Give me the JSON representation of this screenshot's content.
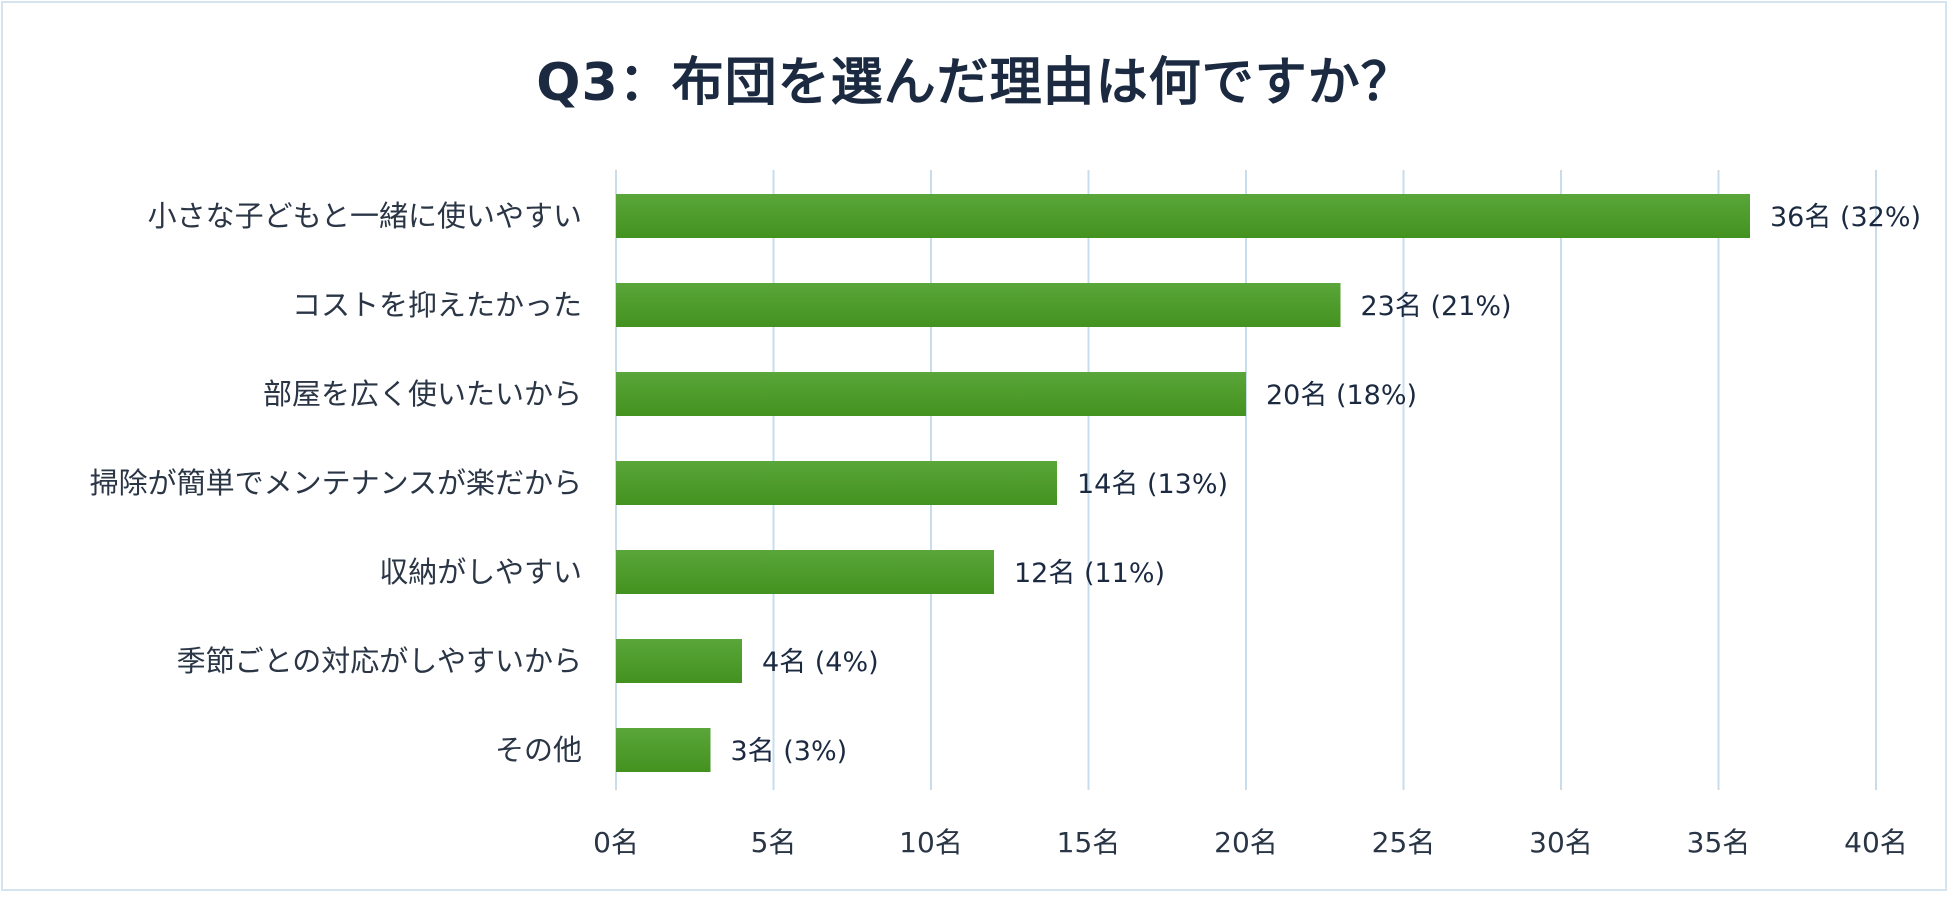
{
  "chart_data": {
    "type": "bar",
    "orientation": "horizontal",
    "title": "Q3：布団を選んだ理由は何ですか？",
    "categories": [
      "小さな子どもと一緒に使いやすい",
      "コストを抑えたかった",
      "部屋を広く使いたいから",
      "掃除が簡単でメンテナンスが楽だから",
      "収納がしやすい",
      "季節ごとの対応がしやすいから",
      "その他"
    ],
    "values": [
      36,
      23,
      20,
      14,
      12,
      4,
      3
    ],
    "data_labels": [
      "36名 (32%)",
      "23名 (21%)",
      "20名 (18%)",
      "14名 (13%)",
      "12名 (11%)",
      "4名 (4%)",
      "3名 (3%)"
    ],
    "xlim": [
      0,
      40
    ],
    "x_ticks": [
      0,
      5,
      10,
      15,
      20,
      25,
      30,
      35,
      40
    ],
    "x_tick_labels": [
      "0名",
      "5名",
      "10名",
      "15名",
      "20名",
      "25名",
      "30名",
      "35名",
      "40名"
    ],
    "grid": "vertical",
    "legend": "none",
    "bar_color": "#43921f",
    "bar_color_light": "#5aa63a",
    "grid_color": "#c9dcec"
  }
}
